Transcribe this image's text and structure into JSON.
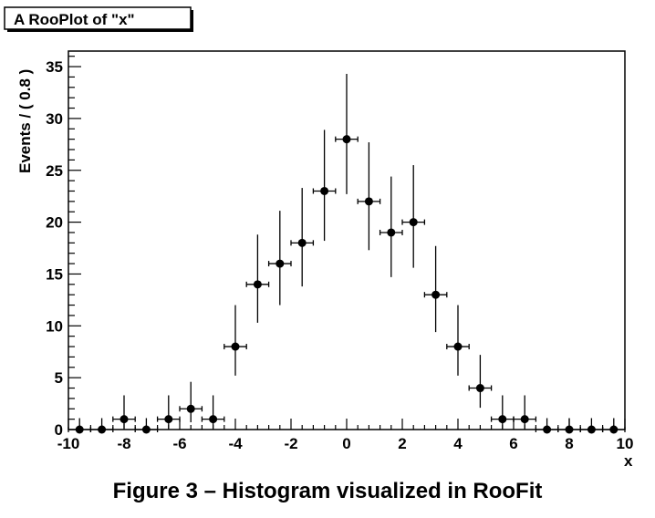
{
  "chart_data": {
    "type": "scatter",
    "title": "A RooPlot of \"x\"",
    "xlabel": "x",
    "ylabel": "Events / ( 0.8 )",
    "xlim": [
      -10,
      10
    ],
    "ylim": [
      0,
      36.5
    ],
    "x_ticks": [
      -10,
      -8,
      -6,
      -4,
      -2,
      0,
      2,
      4,
      6,
      8,
      10
    ],
    "y_ticks": [
      0,
      5,
      10,
      15,
      20,
      25,
      30,
      35
    ],
    "bin_width": 0.8,
    "grid": false,
    "points": [
      {
        "x": -9.6,
        "y": 0,
        "err_low": 0,
        "err_high": 1.1
      },
      {
        "x": -8.8,
        "y": 0,
        "err_low": 0,
        "err_high": 1.1
      },
      {
        "x": -8.0,
        "y": 1,
        "err_low": 0.9,
        "err_high": 2.3
      },
      {
        "x": -7.2,
        "y": 0,
        "err_low": 0,
        "err_high": 1.1
      },
      {
        "x": -6.4,
        "y": 1,
        "err_low": 0.9,
        "err_high": 2.3
      },
      {
        "x": -5.6,
        "y": 2,
        "err_low": 1.3,
        "err_high": 2.6
      },
      {
        "x": -4.8,
        "y": 1,
        "err_low": 0.9,
        "err_high": 2.3
      },
      {
        "x": -4.0,
        "y": 8,
        "err_low": 2.8,
        "err_high": 4.0
      },
      {
        "x": -3.2,
        "y": 14,
        "err_low": 3.7,
        "err_high": 4.8
      },
      {
        "x": -2.4,
        "y": 16,
        "err_low": 4.0,
        "err_high": 5.1
      },
      {
        "x": -1.6,
        "y": 18,
        "err_low": 4.2,
        "err_high": 5.3
      },
      {
        "x": -0.8,
        "y": 23,
        "err_low": 4.8,
        "err_high": 5.9
      },
      {
        "x": 0.0,
        "y": 28,
        "err_low": 5.3,
        "err_high": 6.3
      },
      {
        "x": 0.8,
        "y": 22,
        "err_low": 4.7,
        "err_high": 5.7
      },
      {
        "x": 1.6,
        "y": 19,
        "err_low": 4.3,
        "err_high": 5.4
      },
      {
        "x": 2.4,
        "y": 20,
        "err_low": 4.4,
        "err_high": 5.5
      },
      {
        "x": 3.2,
        "y": 13,
        "err_low": 3.6,
        "err_high": 4.7
      },
      {
        "x": 4.0,
        "y": 8,
        "err_low": 2.8,
        "err_high": 4.0
      },
      {
        "x": 4.8,
        "y": 4,
        "err_low": 1.9,
        "err_high": 3.2
      },
      {
        "x": 5.6,
        "y": 1,
        "err_low": 0.9,
        "err_high": 2.3
      },
      {
        "x": 6.4,
        "y": 1,
        "err_low": 0.9,
        "err_high": 2.3
      },
      {
        "x": 7.2,
        "y": 0,
        "err_low": 0,
        "err_high": 1.1
      },
      {
        "x": 8.0,
        "y": 0,
        "err_low": 0,
        "err_high": 1.1
      },
      {
        "x": 8.8,
        "y": 0,
        "err_low": 0,
        "err_high": 1.1
      },
      {
        "x": 9.6,
        "y": 0,
        "err_low": 0,
        "err_high": 1.1
      }
    ]
  },
  "caption": "Figure 3 – Histogram visualized in RooFit"
}
